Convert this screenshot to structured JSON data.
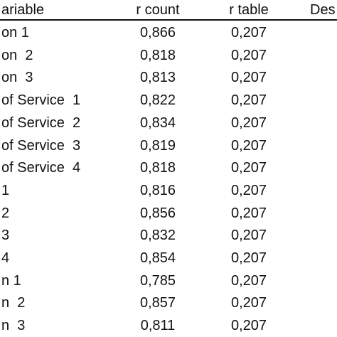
{
  "header": {
    "columns": [
      "ariable",
      "r count",
      "r table",
      "Des"
    ]
  },
  "table": {
    "rows": [
      [
        "on 1",
        "0,866",
        "0,207"
      ],
      [
        "on  2",
        "0,818",
        "0,207"
      ],
      [
        "on  3",
        "0,813",
        "0,207"
      ],
      [
        "of Service  1",
        "0,822",
        "0,207"
      ],
      [
        "of Service  2",
        "0,834",
        "0,207"
      ],
      [
        "of Service  3",
        "0,819",
        "0,207"
      ],
      [
        "of Service  4",
        "0,818",
        "0,207"
      ],
      [
        "1",
        "0,816",
        "0,207"
      ],
      [
        "2",
        "0,856",
        "0,207"
      ],
      [
        "3",
        "0,832",
        "0,207"
      ],
      [
        "4",
        "0,854",
        "0,207"
      ],
      [
        "n 1",
        "0,785",
        "0,207"
      ],
      [
        "n  2",
        "0,857",
        "0,207"
      ],
      [
        "n  3",
        "0,811",
        "0,207"
      ]
    ]
  }
}
